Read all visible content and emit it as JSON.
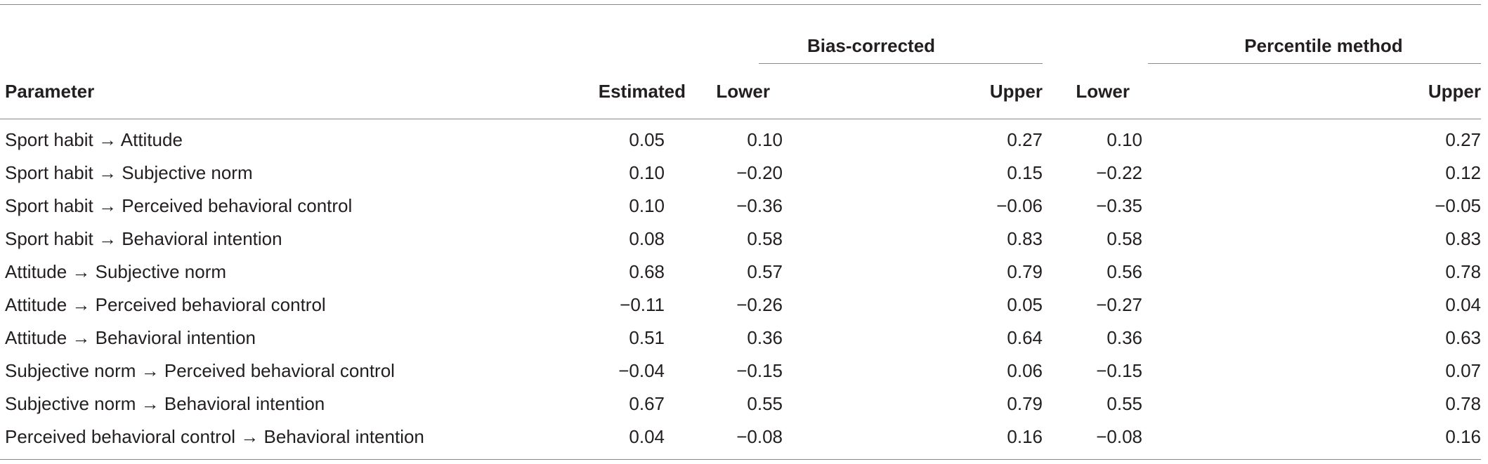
{
  "table": {
    "group_headers": {
      "bias_corrected": "Bias-corrected",
      "percentile_method": "Percentile method"
    },
    "columns": {
      "parameter": "Parameter",
      "estimated": "Estimated",
      "bc_lower": "Lower",
      "bc_upper": "Upper",
      "pm_lower": "Lower",
      "pm_upper": "Upper"
    },
    "rows": [
      {
        "parameter": "Sport habit → Attitude",
        "estimated": "0.05",
        "bc_lower": "0.10",
        "bc_upper": "0.27",
        "pm_lower": "0.10",
        "pm_upper": "0.27"
      },
      {
        "parameter": "Sport habit → Subjective norm",
        "estimated": "0.10",
        "bc_lower": "−0.20",
        "bc_upper": "0.15",
        "pm_lower": "−0.22",
        "pm_upper": "0.12"
      },
      {
        "parameter": "Sport habit → Perceived behavioral control",
        "estimated": "0.10",
        "bc_lower": "−0.36",
        "bc_upper": "−0.06",
        "pm_lower": "−0.35",
        "pm_upper": "−0.05"
      },
      {
        "parameter": "Sport habit → Behavioral intention",
        "estimated": "0.08",
        "bc_lower": "0.58",
        "bc_upper": "0.83",
        "pm_lower": "0.58",
        "pm_upper": "0.83"
      },
      {
        "parameter": "Attitude → Subjective norm",
        "estimated": "0.68",
        "bc_lower": "0.57",
        "bc_upper": "0.79",
        "pm_lower": "0.56",
        "pm_upper": "0.78"
      },
      {
        "parameter": "Attitude → Perceived behavioral control",
        "estimated": "−0.11",
        "bc_lower": "−0.26",
        "bc_upper": "0.05",
        "pm_lower": "−0.27",
        "pm_upper": "0.04"
      },
      {
        "parameter": "Attitude → Behavioral intention",
        "estimated": "0.51",
        "bc_lower": "0.36",
        "bc_upper": "0.64",
        "pm_lower": "0.36",
        "pm_upper": "0.63"
      },
      {
        "parameter": "Subjective norm → Perceived behavioral control",
        "estimated": "−0.04",
        "bc_lower": "−0.15",
        "bc_upper": "0.06",
        "pm_lower": "−0.15",
        "pm_upper": "0.07"
      },
      {
        "parameter": "Subjective norm → Behavioral intention",
        "estimated": "0.67",
        "bc_lower": "0.55",
        "bc_upper": "0.79",
        "pm_lower": "0.55",
        "pm_upper": "0.78"
      },
      {
        "parameter": "Perceived behavioral control → Behavioral intention",
        "estimated": "0.04",
        "bc_lower": "−0.08",
        "bc_upper": "0.16",
        "pm_lower": "−0.08",
        "pm_upper": "0.16"
      }
    ]
  }
}
